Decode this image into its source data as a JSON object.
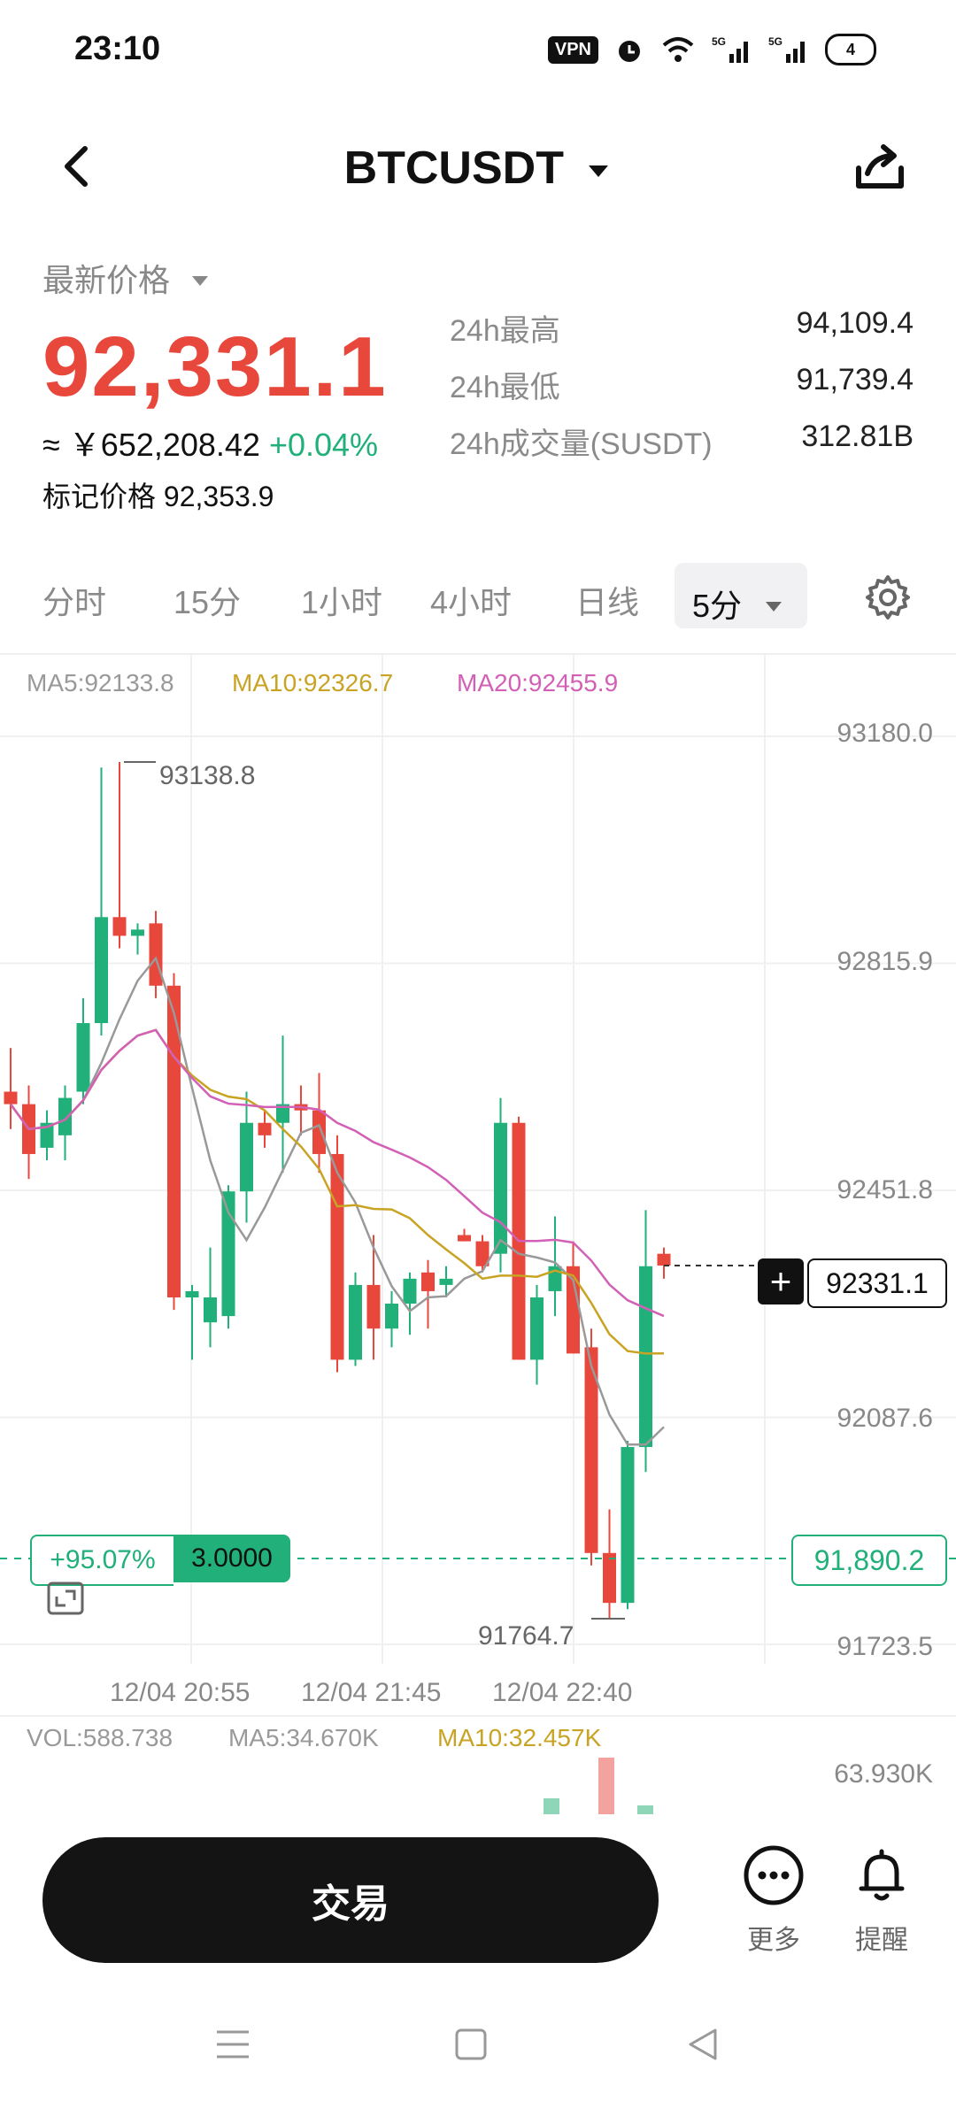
{
  "status": {
    "time": "23:10",
    "vpn": "VPN",
    "battery": "4",
    "signal1": "5G",
    "signal2": "5G"
  },
  "header": {
    "symbol": "BTCUSDT"
  },
  "price": {
    "latest_label": "最新价格",
    "last": "92,331.1",
    "cny_prefix": "≈ ￥",
    "cny": "652,208.42",
    "change": "+0.04%",
    "mark_label": "标记价格",
    "mark": "92,353.9"
  },
  "stats": [
    {
      "label": "24h最高",
      "value": "94,109.4"
    },
    {
      "label": "24h最低",
      "value": "91,739.4"
    },
    {
      "label": "24h成交量(SUSDT)",
      "value": "312.81B"
    }
  ],
  "tabs": [
    "分时",
    "15分",
    "1小时",
    "4小时",
    "日线"
  ],
  "selected_tab": "5分",
  "indicators": {
    "ma5": "MA5:92133.8",
    "ma10": "MA10:92326.7",
    "ma20": "MA20:92455.9"
  },
  "y_axis": [
    "93180.0",
    "92815.9",
    "92451.8",
    "92087.6",
    "91723.5"
  ],
  "x_axis": [
    "12/04 20:55",
    "12/04 21:45",
    "12/04 22:40"
  ],
  "high_marker": "93138.8",
  "low_marker": "91764.7",
  "current_price_tag": "92331.1",
  "position": {
    "pnl_pct": "+95.07%",
    "qty": "3.0000",
    "entry": "91,890.2"
  },
  "volume": {
    "vol": "VOL:588.738",
    "ma5": "MA5:34.670K",
    "ma10": "MA10:32.457K",
    "axis_max": "63.930K"
  },
  "bottom": {
    "trade": "交易",
    "more": "更多",
    "alert": "提醒"
  },
  "colors": {
    "up": "#21b07a",
    "down": "#e8473c",
    "ma5": "#999999",
    "ma10": "#c9a323",
    "ma20": "#d260b6"
  },
  "chart_data": {
    "type": "candlestick",
    "y_range": [
      91723.5,
      93180.0
    ],
    "candles": [
      {
        "o": 92610,
        "h": 92680,
        "l": 92550,
        "c": 92590
      },
      {
        "o": 92590,
        "h": 92620,
        "l": 92470,
        "c": 92510
      },
      {
        "o": 92520,
        "h": 92580,
        "l": 92500,
        "c": 92560
      },
      {
        "o": 92540,
        "h": 92620,
        "l": 92500,
        "c": 92600
      },
      {
        "o": 92610,
        "h": 92760,
        "l": 92590,
        "c": 92720
      },
      {
        "o": 92720,
        "h": 93130,
        "l": 92700,
        "c": 92890
      },
      {
        "o": 92890,
        "h": 93138.8,
        "l": 92840,
        "c": 92860
      },
      {
        "o": 92860,
        "h": 92880,
        "l": 92830,
        "c": 92870
      },
      {
        "o": 92880,
        "h": 92900,
        "l": 92760,
        "c": 92780
      },
      {
        "o": 92780,
        "h": 92800,
        "l": 92260,
        "c": 92280
      },
      {
        "o": 92280,
        "h": 92300,
        "l": 92180,
        "c": 92290
      },
      {
        "o": 92240,
        "h": 92360,
        "l": 92200,
        "c": 92280
      },
      {
        "o": 92250,
        "h": 92460,
        "l": 92230,
        "c": 92450
      },
      {
        "o": 92450,
        "h": 92610,
        "l": 92400,
        "c": 92560
      },
      {
        "o": 92560,
        "h": 92580,
        "l": 92520,
        "c": 92540
      },
      {
        "o": 92560,
        "h": 92700,
        "l": 92480,
        "c": 92590
      },
      {
        "o": 92590,
        "h": 92620,
        "l": 92540,
        "c": 92580
      },
      {
        "o": 92580,
        "h": 92640,
        "l": 92480,
        "c": 92510
      },
      {
        "o": 92510,
        "h": 92540,
        "l": 92160,
        "c": 92180
      },
      {
        "o": 92180,
        "h": 92320,
        "l": 92170,
        "c": 92300
      },
      {
        "o": 92300,
        "h": 92380,
        "l": 92180,
        "c": 92230
      },
      {
        "o": 92230,
        "h": 92290,
        "l": 92200,
        "c": 92270
      },
      {
        "o": 92270,
        "h": 92320,
        "l": 92220,
        "c": 92310
      },
      {
        "o": 92320,
        "h": 92340,
        "l": 92230,
        "c": 92290
      },
      {
        "o": 92300,
        "h": 92330,
        "l": 92280,
        "c": 92310
      },
      {
        "o": 92380,
        "h": 92390,
        "l": 92370,
        "c": 92370
      },
      {
        "o": 92370,
        "h": 92380,
        "l": 92320,
        "c": 92330
      },
      {
        "o": 92350,
        "h": 92600,
        "l": 92320,
        "c": 92560
      },
      {
        "o": 92560,
        "h": 92570,
        "l": 92180,
        "c": 92180
      },
      {
        "o": 92180,
        "h": 92300,
        "l": 92140,
        "c": 92280
      },
      {
        "o": 92290,
        "h": 92410,
        "l": 92250,
        "c": 92330
      },
      {
        "o": 92330,
        "h": 92370,
        "l": 92190,
        "c": 92190
      },
      {
        "o": 92200,
        "h": 92230,
        "l": 91850,
        "c": 91870
      },
      {
        "o": 91870,
        "h": 91940,
        "l": 91764.7,
        "c": 91790
      },
      {
        "o": 91790,
        "h": 92050,
        "l": 91780,
        "c": 92040
      },
      {
        "o": 92040,
        "h": 92420,
        "l": 92000,
        "c": 92330
      },
      {
        "o": 92350,
        "h": 92360,
        "l": 92310,
        "c": 92331.1
      }
    ]
  }
}
